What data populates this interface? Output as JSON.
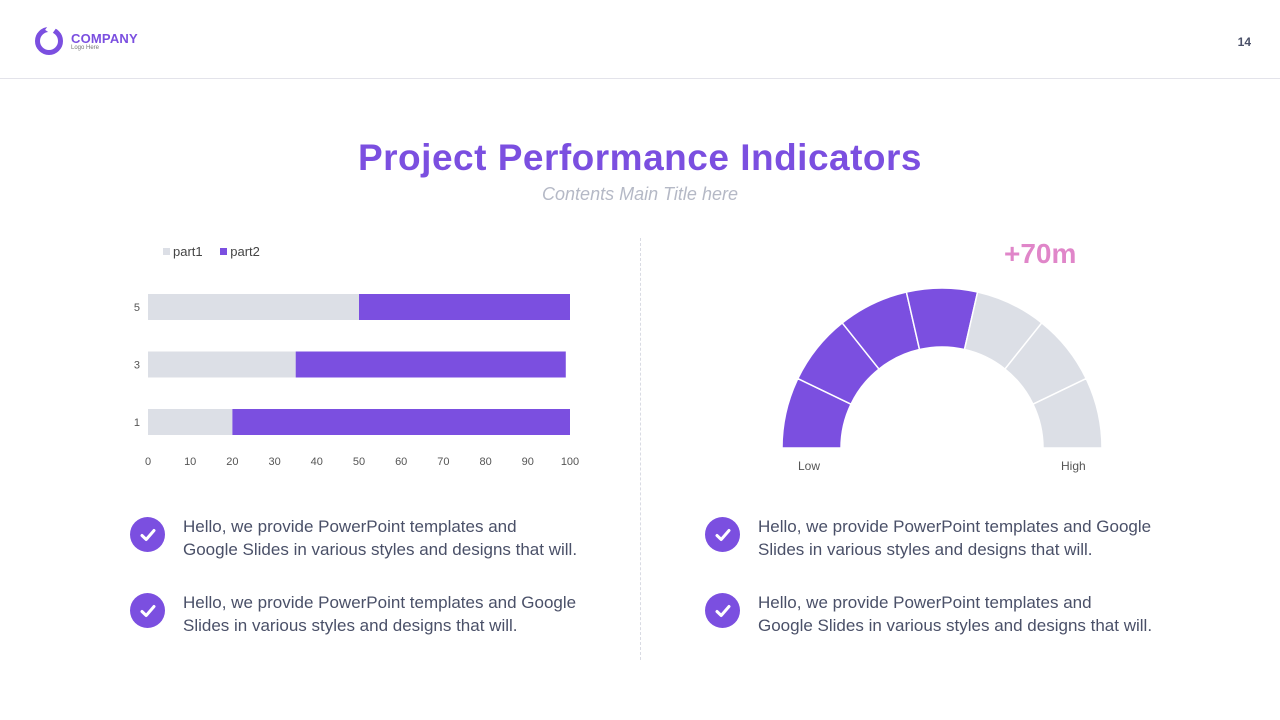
{
  "header": {
    "logo_name": "COMPANY",
    "logo_sub": "Logo Here",
    "page_number": "14"
  },
  "title": "Project Performance Indicators",
  "subtitle": "Contents Main Title here",
  "colors": {
    "accent": "#7b4fe0",
    "light": "#dcdfe6",
    "highlight": "#e086c9",
    "text": "#4a5068"
  },
  "chart_data": [
    {
      "type": "bar",
      "orientation": "horizontal",
      "stacked": true,
      "categories": [
        "5",
        "3",
        "1"
      ],
      "series": [
        {
          "name": "part1",
          "values": [
            50,
            35,
            20
          ],
          "color": "#dcdfe6"
        },
        {
          "name": "part2",
          "values": [
            50,
            64,
            80
          ],
          "color": "#7b4fe0"
        }
      ],
      "xlim": [
        0,
        100
      ],
      "xticks": [
        "0",
        "10",
        "20",
        "30",
        "40",
        "50",
        "60",
        "70",
        "80",
        "90",
        "100"
      ],
      "legend": "top-left",
      "grid": false
    },
    {
      "type": "pie",
      "subtype": "gauge",
      "segments_total": 7,
      "segments_filled": 4,
      "value_label": "+70m",
      "min_label": "Low",
      "max_label": "High"
    }
  ],
  "bullets": [
    {
      "line1": "Hello, we provide PowerPoint templates and",
      "line2": "Google Slides in various styles and designs that will."
    },
    {
      "line1": "Hello, we provide PowerPoint templates and Google",
      "line2": "Slides in various styles and designs that will."
    },
    {
      "line1": "Hello, we provide PowerPoint templates and Google",
      "line2": "Slides in various styles and designs that will."
    },
    {
      "line1": "Hello, we provide PowerPoint templates and",
      "line2": "Google Slides in various styles and designs that will."
    }
  ]
}
